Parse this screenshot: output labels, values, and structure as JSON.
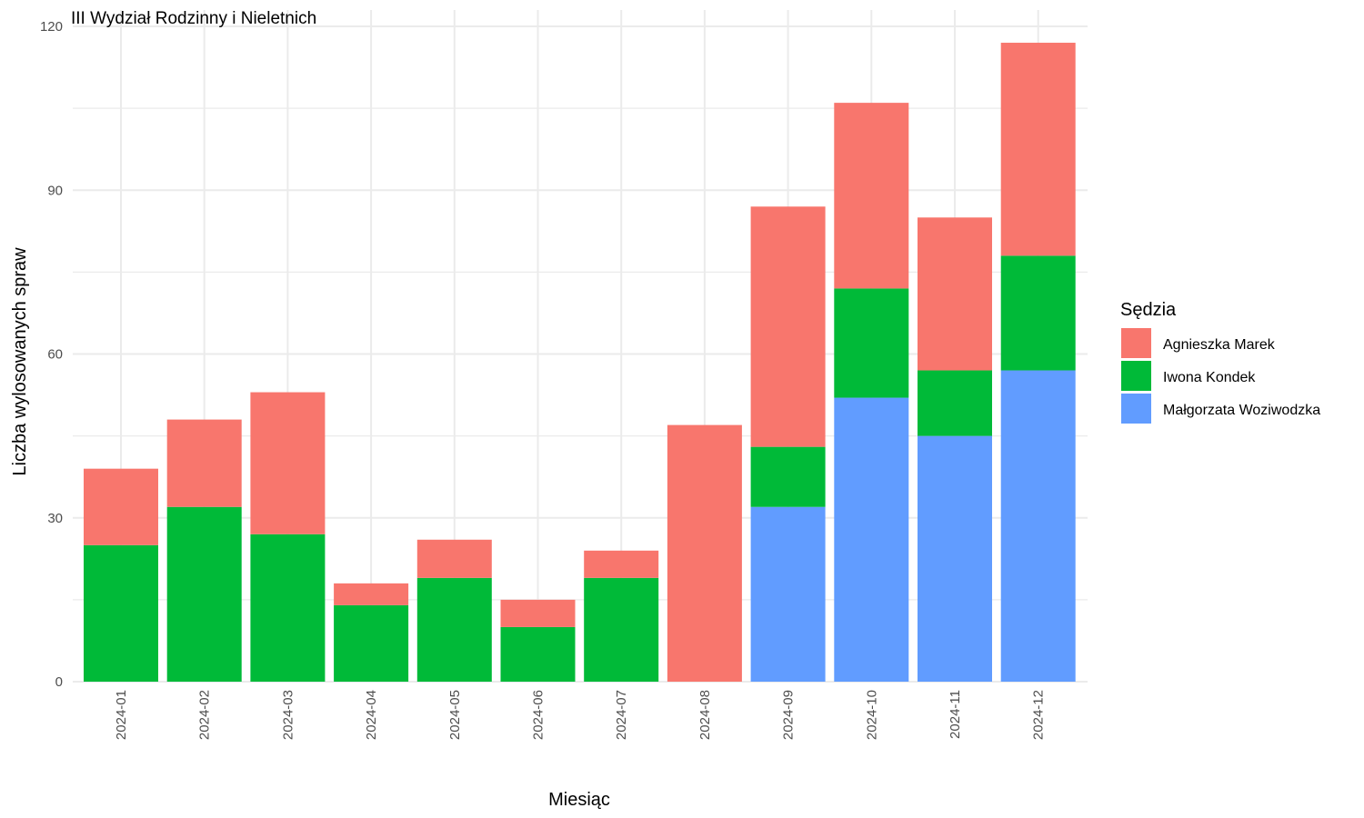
{
  "chart_data": {
    "type": "bar",
    "stacked": true,
    "title": "III Wydział Rodzinny i Nieletnich",
    "xlabel": "Miesiąc",
    "ylabel": "Liczba wylosowanych spraw",
    "ylim": [
      0,
      120
    ],
    "y_ticks": [
      "0",
      "30",
      "60",
      "90",
      "120"
    ],
    "y_tick_values": [
      0,
      30,
      60,
      90,
      120
    ],
    "y_minor_tick_values": [
      15,
      45,
      75,
      105
    ],
    "grid": true,
    "x_tick_rotation": "vertical",
    "categories": [
      "2024-01",
      "2024-02",
      "2024-03",
      "2024-04",
      "2024-05",
      "2024-06",
      "2024-07",
      "2024-08",
      "2024-09",
      "2024-10",
      "2024-11",
      "2024-12"
    ],
    "stack_order_bottom_to_top": [
      "Małgorzata Woziwodzka",
      "Iwona Kondek",
      "Agnieszka Marek"
    ],
    "series": [
      {
        "name": "Agnieszka Marek",
        "color": "#F8766D",
        "values": [
          14,
          16,
          26,
          4,
          7,
          5,
          5,
          47,
          44,
          34,
          28,
          39
        ]
      },
      {
        "name": "Iwona Kondek",
        "color": "#00BA38",
        "values": [
          25,
          32,
          27,
          14,
          19,
          10,
          19,
          0,
          11,
          20,
          12,
          21
        ]
      },
      {
        "name": "Małgorzata Woziwodzka",
        "color": "#619CFF",
        "values": [
          0,
          0,
          0,
          0,
          0,
          0,
          0,
          0,
          32,
          52,
          45,
          57
        ]
      }
    ],
    "legend": {
      "title": "Sędzia",
      "position": "right",
      "entries": [
        "Agnieszka Marek",
        "Iwona Kondek",
        "Małgorzata Woziwodzka"
      ]
    }
  }
}
